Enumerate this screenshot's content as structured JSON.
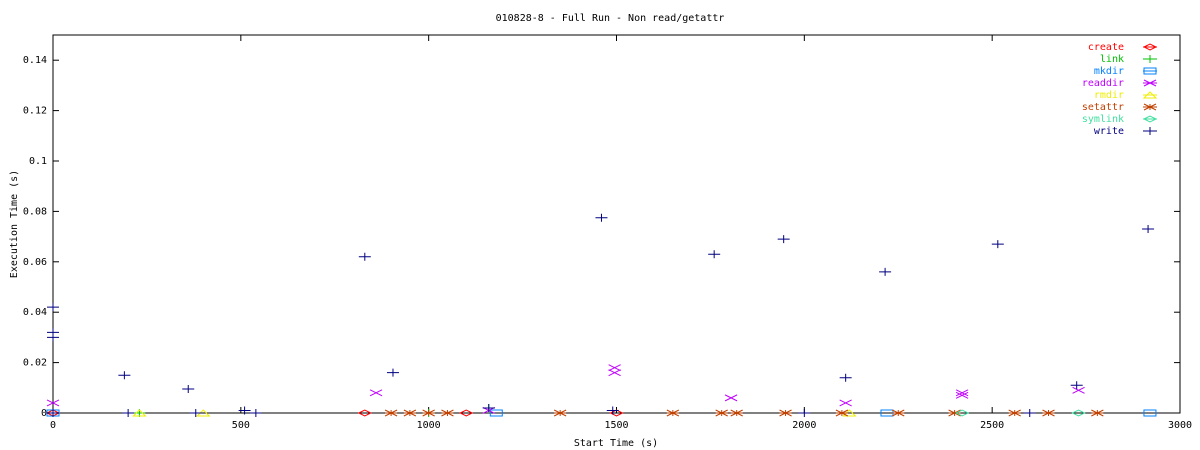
{
  "chart_data": {
    "type": "scatter",
    "title": "010828-8 - Full Run - Non read/getattr",
    "x_label": "Start Time (s)",
    "y_label": "Execution Time (s)",
    "xlim": [
      0,
      3000
    ],
    "xticks": [
      0,
      500,
      1000,
      1500,
      2000,
      2500,
      3000
    ],
    "ylim": [
      0,
      0.15
    ],
    "yticks": [
      0,
      0.02,
      0.04,
      0.06,
      0.08,
      0.1,
      0.12,
      0.14
    ],
    "legend": "upper right",
    "series": [
      {
        "name": "create",
        "color": "#ff0000",
        "marker": "diamond",
        "x": [
          0,
          830,
          1100,
          1500
        ],
        "values": [
          0,
          0,
          0,
          0
        ]
      },
      {
        "name": "link",
        "color": "#00c000",
        "marker": "plus",
        "x": [
          230,
          1160,
          1000
        ],
        "values": [
          0,
          0.002,
          0
        ]
      },
      {
        "name": "mkdir",
        "color": "#0080ff",
        "marker": "square",
        "x": [
          1180,
          2220,
          2920,
          0
        ],
        "values": [
          0,
          0,
          0,
          0
        ]
      },
      {
        "name": "readdir",
        "color": "#c000ff",
        "marker": "cross",
        "x": [
          0,
          860,
          1495,
          1495,
          1805,
          2110,
          2420,
          2420,
          2730,
          1160
        ],
        "values": [
          0.004,
          0.008,
          0.018,
          0.016,
          0.006,
          0.004,
          0.008,
          0.007,
          0.009,
          0.001
        ]
      },
      {
        "name": "rmdir",
        "color": "#eeee00",
        "marker": "triangle",
        "x": [
          230,
          400,
          2120
        ],
        "values": [
          0,
          0,
          0
        ]
      },
      {
        "name": "setattr",
        "color": "#c04000",
        "marker": "star",
        "x": [
          900,
          950,
          1000,
          1050,
          1350,
          1650,
          1780,
          1820,
          1950,
          2100,
          2250,
          2400,
          2560,
          2650,
          2780
        ],
        "values": [
          0,
          0,
          0,
          0,
          0,
          0,
          0,
          0,
          0,
          0,
          0,
          0,
          0,
          0,
          0
        ]
      },
      {
        "name": "symlink",
        "color": "#40e0a0",
        "marker": "diamond",
        "x": [
          2420,
          2730
        ],
        "values": [
          0,
          0
        ]
      },
      {
        "name": "write",
        "color": "#000080",
        "marker": "plus",
        "x": [
          0,
          0,
          0,
          190,
          360,
          830,
          905,
          1460,
          1760,
          1945,
          2110,
          2215,
          2515,
          2725,
          2915,
          0,
          200,
          380,
          510,
          540,
          1160,
          1490,
          2000,
          2600
        ],
        "values": [
          0.042,
          0.032,
          0.03,
          0.015,
          0.0095,
          0.062,
          0.016,
          0.0775,
          0.063,
          0.069,
          0.014,
          0.056,
          0.067,
          0.011,
          0.073,
          0,
          0,
          0,
          0.001,
          0,
          0.002,
          0.001,
          0,
          0
        ]
      }
    ]
  }
}
